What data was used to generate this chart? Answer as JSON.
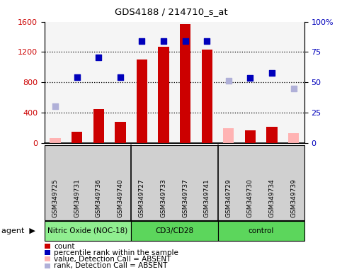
{
  "title": "GDS4188 / 214710_s_at",
  "samples": [
    "GSM349725",
    "GSM349731",
    "GSM349736",
    "GSM349740",
    "GSM349727",
    "GSM349733",
    "GSM349737",
    "GSM349741",
    "GSM349729",
    "GSM349730",
    "GSM349734",
    "GSM349739"
  ],
  "count_values": [
    null,
    150,
    450,
    280,
    1100,
    1270,
    1565,
    1230,
    null,
    165,
    210,
    null
  ],
  "count_absent": [
    65,
    null,
    null,
    null,
    null,
    null,
    null,
    null,
    195,
    null,
    null,
    125
  ],
  "percentile_values": [
    null,
    870,
    1130,
    870,
    1340,
    1340,
    1340,
    1340,
    null,
    860,
    925,
    null
  ],
  "percentile_absent": [
    480,
    null,
    null,
    null,
    null,
    null,
    null,
    null,
    820,
    null,
    null,
    720
  ],
  "left_ylim": [
    0,
    1600
  ],
  "left_yticks": [
    0,
    400,
    800,
    1200,
    1600
  ],
  "right_ylim": [
    0,
    100
  ],
  "right_yticks": [
    0,
    25,
    50,
    75,
    100
  ],
  "count_color": "#cc0000",
  "count_absent_color": "#ffb3b3",
  "percentile_color": "#0000bb",
  "percentile_absent_color": "#b0b0d8",
  "bar_width": 0.5,
  "plot_bg": "#f5f5f5",
  "sample_bg": "#d0d0d0",
  "group_defs": [
    {
      "name": "Nitric Oxide (NOC-18)",
      "start": 0,
      "end": 3,
      "color": "#90ee90"
    },
    {
      "name": "CD3/CD28",
      "start": 4,
      "end": 7,
      "color": "#5cd65c"
    },
    {
      "name": "control",
      "start": 8,
      "end": 11,
      "color": "#5cd65c"
    }
  ],
  "legend_items": [
    {
      "color": "#cc0000",
      "label": "count"
    },
    {
      "color": "#0000bb",
      "label": "percentile rank within the sample"
    },
    {
      "color": "#ffb3b3",
      "label": "value, Detection Call = ABSENT"
    },
    {
      "color": "#b0b0d8",
      "label": "rank, Detection Call = ABSENT"
    }
  ]
}
